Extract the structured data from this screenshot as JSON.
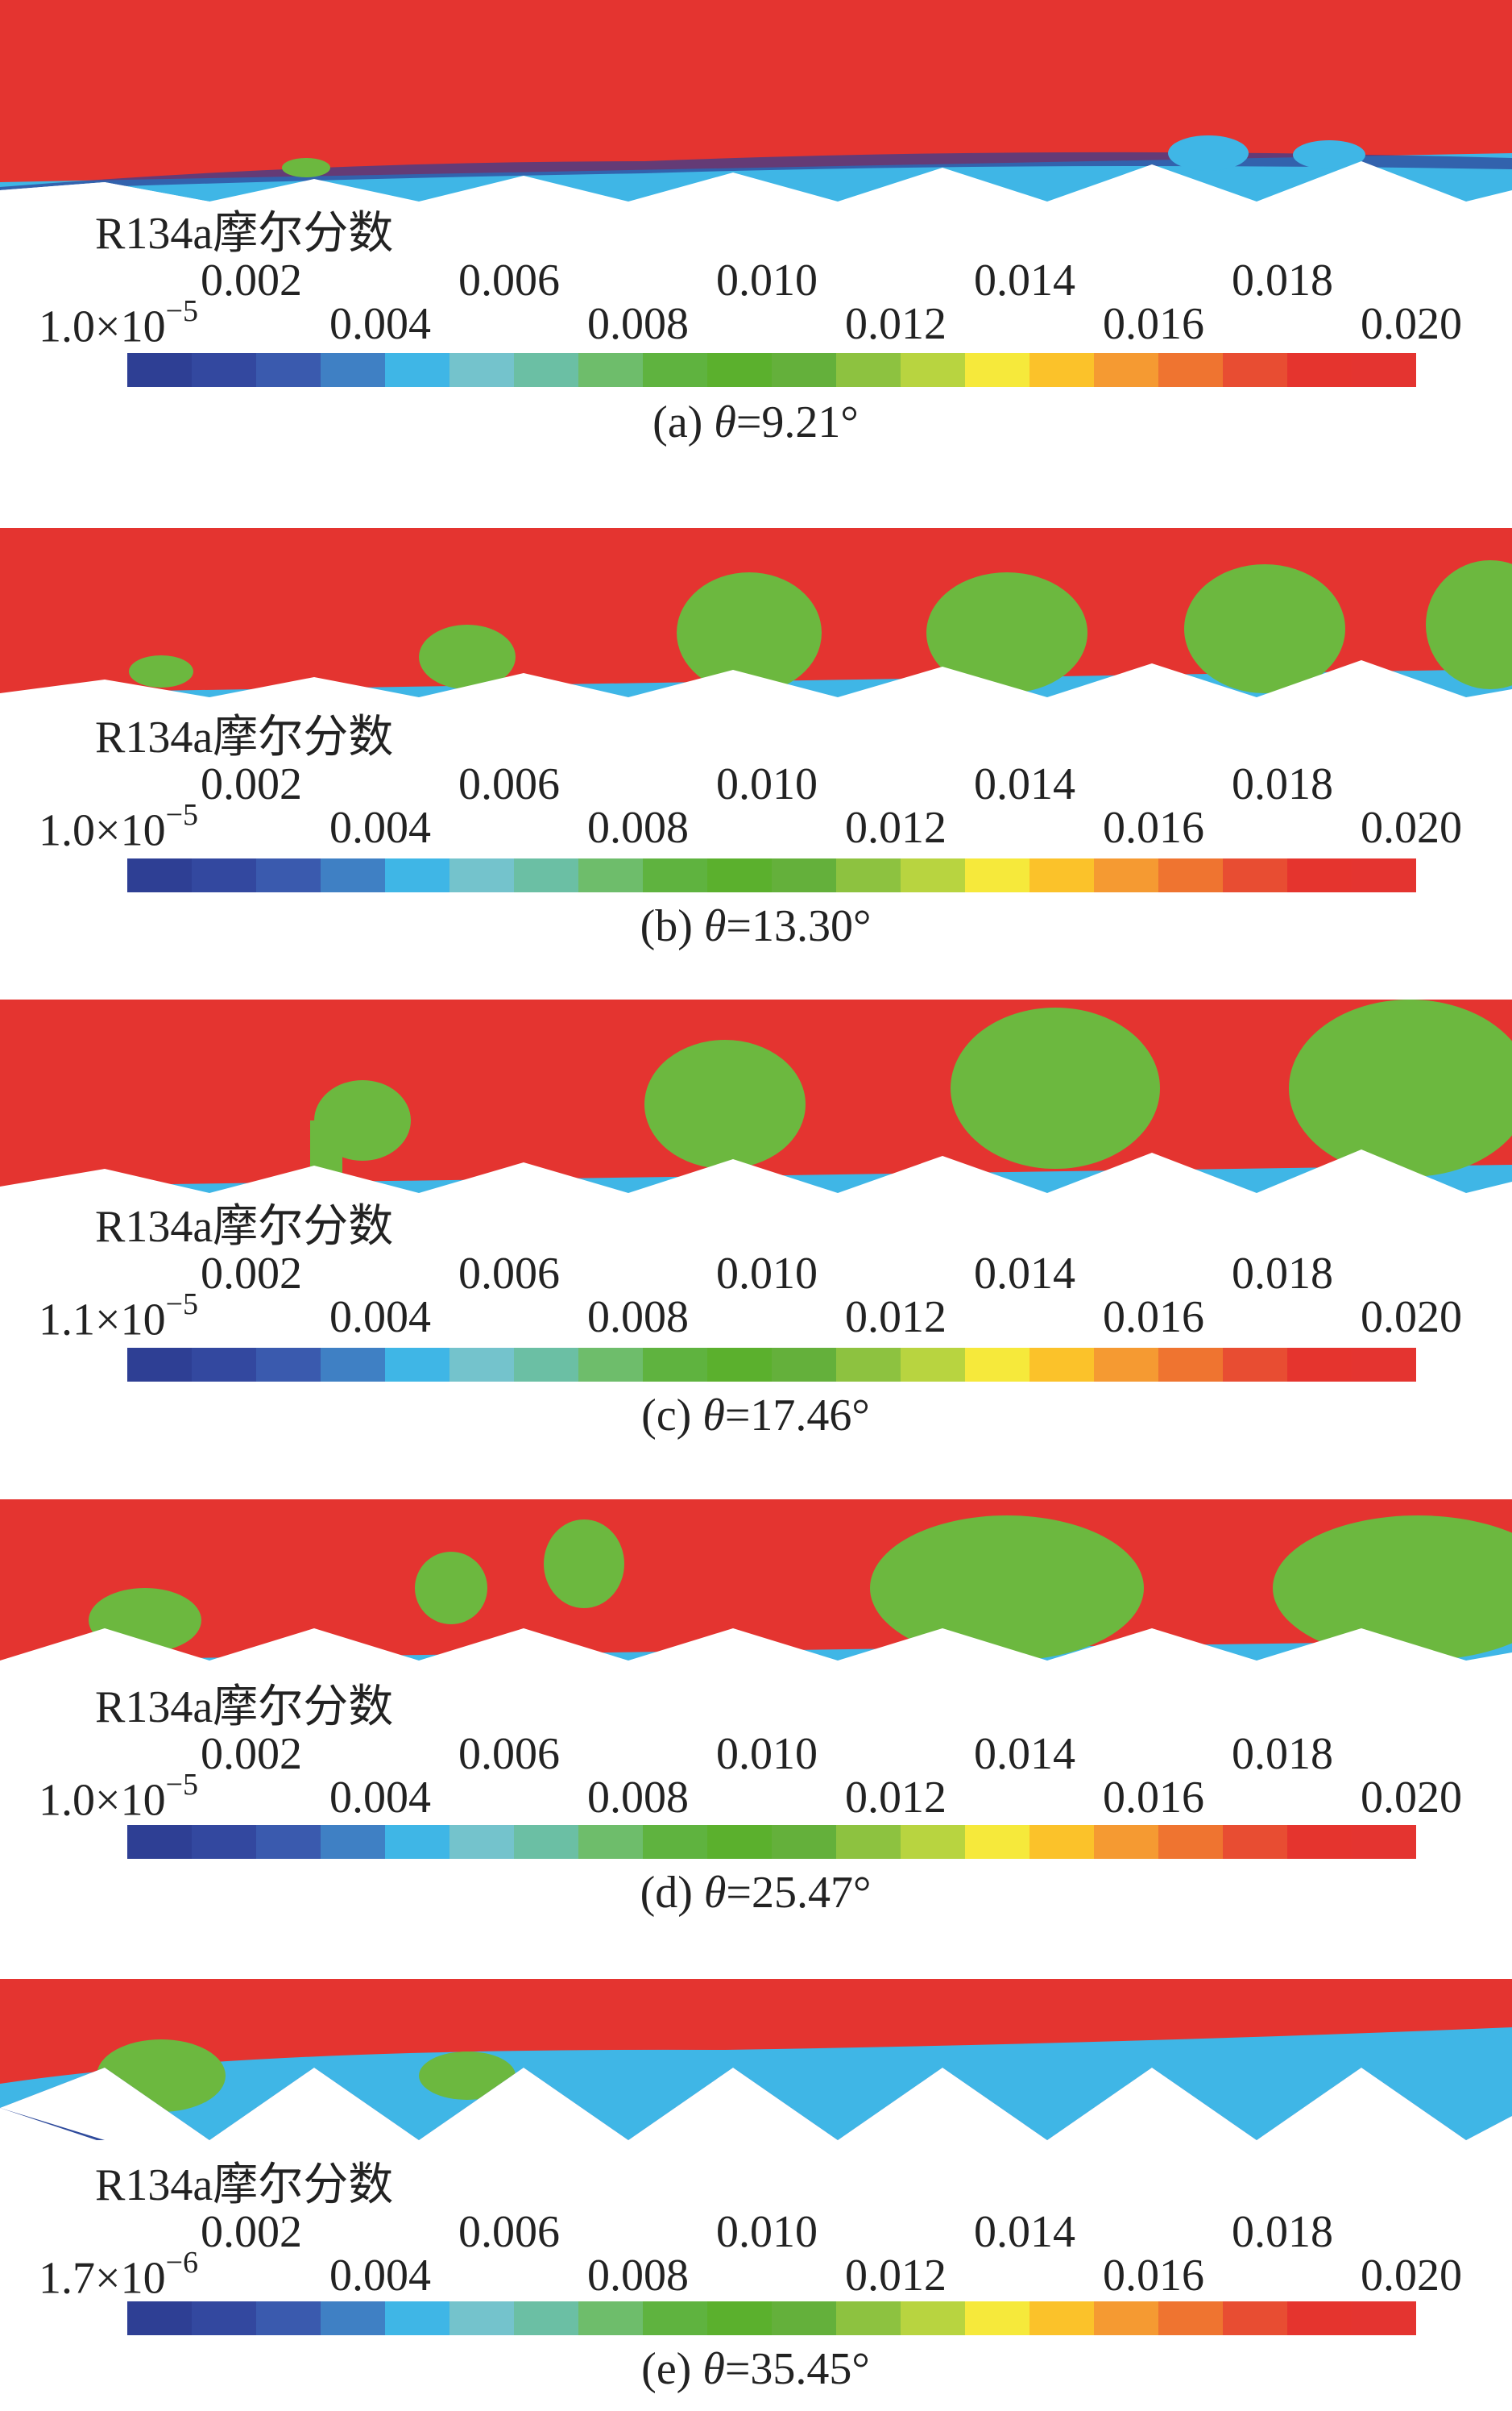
{
  "legend_title": "R134a摩尔分数",
  "ticks_upper": [
    "0.002",
    "0.006",
    "0.010",
    "0.014",
    "0.018"
  ],
  "ticks_lower": [
    "0.004",
    "0.008",
    "0.012",
    "0.016",
    "0.020"
  ],
  "colormap": [
    "#2e3f94",
    "#33489f",
    "#3a5aae",
    "#3f80c4",
    "#3fb6e6",
    "#74c3cc",
    "#6bbfa4",
    "#6ebd6b",
    "#5fb33f",
    "#5bb02d",
    "#64b03b",
    "#8dc240",
    "#b8d440",
    "#f6e93b",
    "#fbc22a",
    "#f59a32",
    "#ef7430",
    "#e84d32",
    "#e5342e",
    "#e43430"
  ],
  "field_colors": {
    "background": "#e43430",
    "green": "#6cb83f",
    "blue": "#2e3f94",
    "cyan": "#3fb6e6",
    "yellow": "#f6e93b"
  },
  "panels": [
    {
      "id": "a",
      "min_mantissa": "1.0×10",
      "min_exponent": "−5",
      "caption_prefix": "(a) ",
      "caption_symbol": "θ",
      "caption_value": "=9.21°"
    },
    {
      "id": "b",
      "min_mantissa": "1.0×10",
      "min_exponent": "−5",
      "caption_prefix": "(b) ",
      "caption_symbol": "θ",
      "caption_value": "=13.30°"
    },
    {
      "id": "c",
      "min_mantissa": "1.1×10",
      "min_exponent": "−5",
      "caption_prefix": "(c) ",
      "caption_symbol": "θ",
      "caption_value": "=17.46°"
    },
    {
      "id": "d",
      "min_mantissa": "1.0×10",
      "min_exponent": "−5",
      "caption_prefix": "(d) ",
      "caption_symbol": "θ",
      "caption_value": "=25.47°"
    },
    {
      "id": "e",
      "min_mantissa": "1.7×10",
      "min_exponent": "−6",
      "caption_prefix": "(e) ",
      "caption_symbol": "θ",
      "caption_value": "=35.45°"
    }
  ]
}
